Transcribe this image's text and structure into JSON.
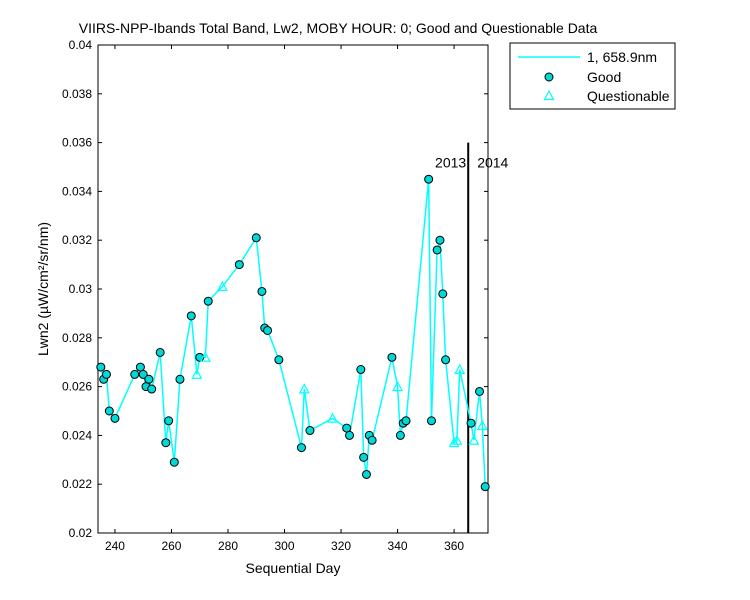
{
  "chart_data": {
    "type": "line",
    "title": "VIIRS-NPP-Ibands Total Band, Lw2, MOBY HOUR: 0;  Good and Questionable Data",
    "xlabel": "Sequential Day",
    "ylabel": "Lwn2 (µW/cm²/sr/nm)",
    "xlim": [
      234,
      372
    ],
    "ylim": [
      0.02,
      0.04
    ],
    "x_ticks": [
      "240",
      "260",
      "280",
      "300",
      "320",
      "340",
      "360"
    ],
    "y_ticks": [
      "0.02",
      "0.022",
      "0.024",
      "0.026",
      "0.028",
      "0.03",
      "0.032",
      "0.034",
      "0.036",
      "0.038",
      "0.04"
    ],
    "grid": false,
    "legend_position": "outside-top-right",
    "legend": {
      "line_label": "1, 658.9nm",
      "good_label": "Good",
      "questionable_label": "Questionable"
    },
    "year_separator": {
      "x": 365,
      "left_label": "2013",
      "right_label": "2014",
      "y_top": 0.036
    },
    "colors": {
      "line": "#00ffff",
      "marker_face": "#00d8d8",
      "marker_edge": "#000000",
      "axis": "#000000"
    },
    "series": [
      {
        "name": "1, 658.9nm",
        "points": [
          {
            "x": 235,
            "y": 0.0268,
            "q": "good"
          },
          {
            "x": 236,
            "y": 0.0263,
            "q": "good"
          },
          {
            "x": 237,
            "y": 0.0265,
            "q": "good"
          },
          {
            "x": 238,
            "y": 0.025,
            "q": "good"
          },
          {
            "x": 240,
            "y": 0.0247,
            "q": "good"
          },
          {
            "x": 247,
            "y": 0.0265,
            "q": "good"
          },
          {
            "x": 249,
            "y": 0.0268,
            "q": "good"
          },
          {
            "x": 250,
            "y": 0.0265,
            "q": "good"
          },
          {
            "x": 251,
            "y": 0.026,
            "q": "good"
          },
          {
            "x": 252,
            "y": 0.0263,
            "q": "good"
          },
          {
            "x": 253,
            "y": 0.0259,
            "q": "good"
          },
          {
            "x": 256,
            "y": 0.0274,
            "q": "good"
          },
          {
            "x": 258,
            "y": 0.0237,
            "q": "good"
          },
          {
            "x": 259,
            "y": 0.0246,
            "q": "good"
          },
          {
            "x": 261,
            "y": 0.0229,
            "q": "good"
          },
          {
            "x": 263,
            "y": 0.0263,
            "q": "good"
          },
          {
            "x": 267,
            "y": 0.0289,
            "q": "good"
          },
          {
            "x": 269,
            "y": 0.0265,
            "q": "questionable"
          },
          {
            "x": 270,
            "y": 0.0272,
            "q": "good"
          },
          {
            "x": 272,
            "y": 0.0272,
            "q": "questionable"
          },
          {
            "x": 273,
            "y": 0.0295,
            "q": "good"
          },
          {
            "x": 278,
            "y": 0.0301,
            "q": "questionable"
          },
          {
            "x": 284,
            "y": 0.031,
            "q": "good"
          },
          {
            "x": 290,
            "y": 0.0321,
            "q": "good"
          },
          {
            "x": 292,
            "y": 0.0299,
            "q": "good"
          },
          {
            "x": 293,
            "y": 0.0284,
            "q": "good"
          },
          {
            "x": 294,
            "y": 0.0283,
            "q": "good"
          },
          {
            "x": 298,
            "y": 0.0271,
            "q": "good"
          },
          {
            "x": 306,
            "y": 0.0235,
            "q": "good"
          },
          {
            "x": 307,
            "y": 0.0259,
            "q": "questionable"
          },
          {
            "x": 309,
            "y": 0.0242,
            "q": "good"
          },
          {
            "x": 317,
            "y": 0.0247,
            "q": "questionable"
          },
          {
            "x": 322,
            "y": 0.0243,
            "q": "good"
          },
          {
            "x": 323,
            "y": 0.024,
            "q": "good"
          },
          {
            "x": 327,
            "y": 0.0267,
            "q": "good"
          },
          {
            "x": 328,
            "y": 0.0231,
            "q": "good"
          },
          {
            "x": 329,
            "y": 0.0224,
            "q": "good"
          },
          {
            "x": 330,
            "y": 0.024,
            "q": "good"
          },
          {
            "x": 331,
            "y": 0.0238,
            "q": "good"
          },
          {
            "x": 338,
            "y": 0.0272,
            "q": "good"
          },
          {
            "x": 340,
            "y": 0.026,
            "q": "questionable"
          },
          {
            "x": 341,
            "y": 0.024,
            "q": "good"
          },
          {
            "x": 342,
            "y": 0.0245,
            "q": "good"
          },
          {
            "x": 343,
            "y": 0.0246,
            "q": "good"
          },
          {
            "x": 351,
            "y": 0.0345,
            "q": "good"
          },
          {
            "x": 352,
            "y": 0.0246,
            "q": "good"
          },
          {
            "x": 354,
            "y": 0.0316,
            "q": "good"
          },
          {
            "x": 355,
            "y": 0.032,
            "q": "good"
          },
          {
            "x": 356,
            "y": 0.0298,
            "q": "good"
          },
          {
            "x": 357,
            "y": 0.0271,
            "q": "good"
          },
          {
            "x": 360,
            "y": 0.0237,
            "q": "questionable"
          },
          {
            "x": 361,
            "y": 0.0238,
            "q": "questionable"
          },
          {
            "x": 362,
            "y": 0.0267,
            "q": "questionable"
          },
          {
            "x": 366,
            "y": 0.0245,
            "q": "good"
          },
          {
            "x": 367,
            "y": 0.0238,
            "q": "questionable"
          },
          {
            "x": 369,
            "y": 0.0258,
            "q": "good"
          },
          {
            "x": 370,
            "y": 0.0244,
            "q": "questionable"
          },
          {
            "x": 371,
            "y": 0.0219,
            "q": "good"
          }
        ]
      }
    ]
  }
}
